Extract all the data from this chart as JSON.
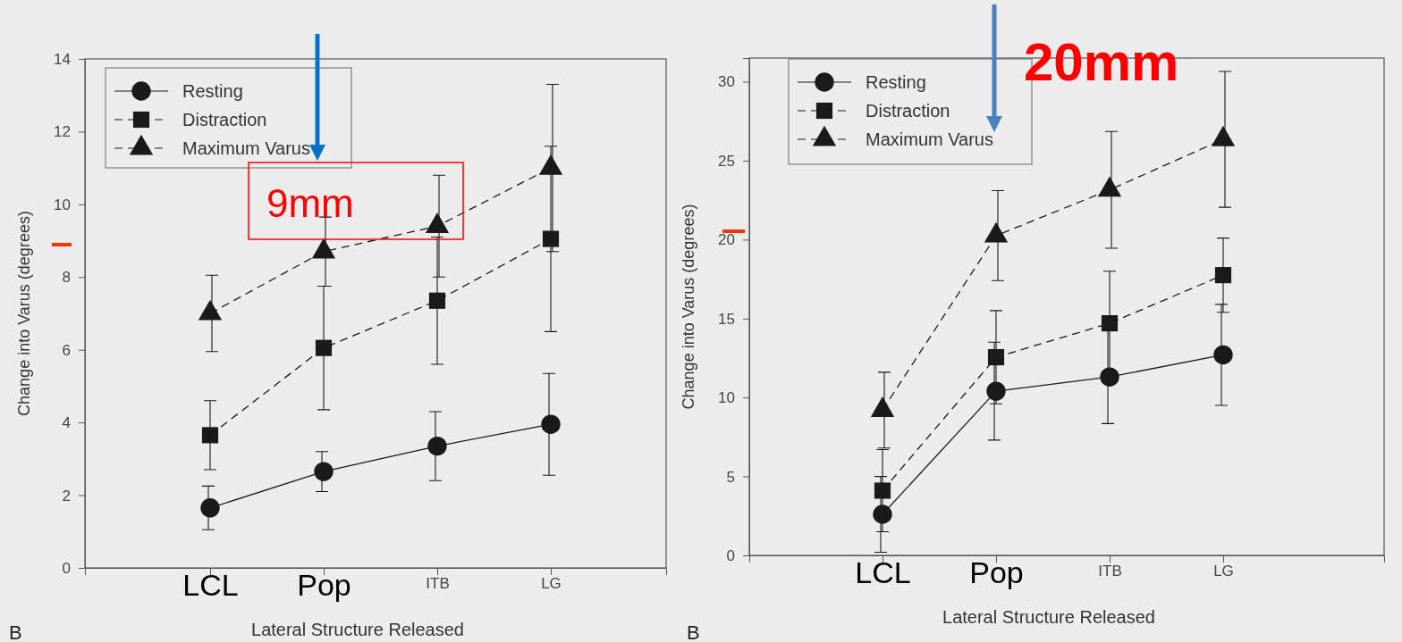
{
  "chart_data": [
    {
      "type": "line",
      "xlabel": "Lateral Structure Released",
      "ylabel": "Change into Varus (degrees)",
      "categories": [
        "LCL",
        "Pop",
        "ITB",
        "LG"
      ],
      "ylim": [
        0,
        14
      ],
      "yticks": [
        0,
        2,
        4,
        6,
        8,
        10,
        12,
        14
      ],
      "grid": false,
      "legend": "top left",
      "annotations": [
        "9mm",
        "B"
      ],
      "series": [
        {
          "name": "Resting",
          "color": "#1a1a1a",
          "marker": "circle",
          "line_style": "solid",
          "values": [
            1.65,
            2.65,
            3.35,
            3.95
          ],
          "errors": [
            0.6,
            0.55,
            0.95,
            1.4
          ]
        },
        {
          "name": "Distraction",
          "color": "#1a1a1a",
          "marker": "square",
          "line_style": "dashed",
          "values": [
            3.65,
            6.05,
            7.35,
            9.05
          ],
          "errors": [
            0.95,
            1.7,
            1.75,
            2.55
          ]
        },
        {
          "name": "Maximum Varus",
          "color": "#1a1a1a",
          "marker": "triangle",
          "line_style": "dashed",
          "values": [
            7.0,
            8.7,
            9.4,
            11.0
          ],
          "errors": [
            1.05,
            0.95,
            1.4,
            2.3
          ]
        }
      ]
    },
    {
      "type": "line",
      "xlabel": "Lateral Structure Released",
      "ylabel": "Change into Varus (degrees)",
      "categories": [
        "LCL",
        "Pop",
        "ITB",
        "LG"
      ],
      "ylim": [
        0,
        31.5
      ],
      "yticks": [
        0,
        5,
        10,
        15,
        20,
        25,
        30
      ],
      "grid": false,
      "legend": "top left",
      "annotations": [
        "20mm",
        "B"
      ],
      "series": [
        {
          "name": "Resting",
          "color": "#1a1a1a",
          "marker": "circle",
          "line_style": "solid",
          "values": [
            2.6,
            10.4,
            11.3,
            12.7
          ],
          "errors": [
            2.4,
            3.1,
            2.95,
            3.2
          ]
        },
        {
          "name": "Distraction",
          "color": "#1a1a1a",
          "marker": "square",
          "line_style": "dashed",
          "values": [
            4.1,
            12.55,
            14.7,
            17.75
          ],
          "errors": [
            2.6,
            2.95,
            3.3,
            2.35
          ]
        },
        {
          "name": "Maximum Varus",
          "color": "#1a1a1a",
          "marker": "triangle",
          "line_style": "dashed",
          "values": [
            9.2,
            20.25,
            23.15,
            26.35
          ],
          "errors": [
            2.4,
            2.85,
            3.7,
            4.3
          ]
        }
      ]
    }
  ]
}
